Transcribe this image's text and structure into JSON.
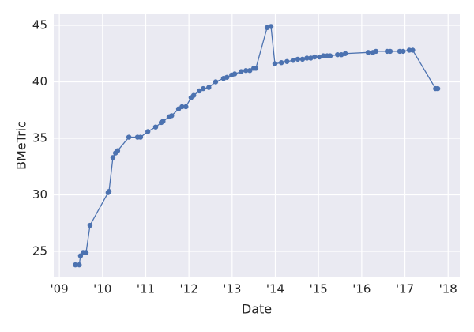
{
  "chart_data": {
    "type": "line",
    "xlabel": "Date",
    "ylabel": "BMeTric",
    "x": [
      2009.37,
      2009.46,
      2009.49,
      2009.55,
      2009.62,
      2009.71,
      2010.13,
      2010.15,
      2010.24,
      2010.3,
      2010.35,
      2010.61,
      2010.81,
      2010.88,
      2011.05,
      2011.23,
      2011.36,
      2011.4,
      2011.54,
      2011.6,
      2011.76,
      2011.84,
      2011.93,
      2012.05,
      2012.11,
      2012.24,
      2012.33,
      2012.46,
      2012.62,
      2012.8,
      2012.88,
      2012.99,
      2013.06,
      2013.21,
      2013.32,
      2013.41,
      2013.5,
      2013.55,
      2013.81,
      2013.9,
      2013.99,
      2014.14,
      2014.27,
      2014.41,
      2014.52,
      2014.63,
      2014.73,
      2014.82,
      2014.91,
      2015.02,
      2015.11,
      2015.2,
      2015.27,
      2015.44,
      2015.53,
      2015.62,
      2016.15,
      2016.26,
      2016.33,
      2016.59,
      2016.66,
      2016.88,
      2016.96,
      2017.1,
      2017.18,
      2017.71,
      2017.76
    ],
    "series": [
      {
        "color": "#4c72b0",
        "values": [
          23.8,
          23.8,
          24.6,
          24.9,
          24.9,
          27.3,
          30.2,
          30.3,
          33.3,
          33.7,
          33.9,
          35.1,
          35.1,
          35.1,
          35.6,
          36.0,
          36.4,
          36.5,
          36.9,
          37.0,
          37.6,
          37.8,
          37.8,
          38.6,
          38.8,
          39.2,
          39.4,
          39.5,
          40.0,
          40.3,
          40.4,
          40.6,
          40.7,
          40.9,
          41.0,
          41.0,
          41.2,
          41.2,
          44.8,
          44.9,
          41.6,
          41.7,
          41.8,
          41.9,
          42.0,
          42.0,
          42.1,
          42.1,
          42.2,
          42.2,
          42.3,
          42.3,
          42.3,
          42.4,
          42.4,
          42.5,
          42.6,
          42.6,
          42.7,
          42.7,
          42.7,
          42.7,
          42.7,
          42.8,
          42.8,
          39.4,
          39.4
        ]
      }
    ],
    "xlim": [
      2008.87,
      2018.27
    ],
    "xticks": [
      {
        "value": 2009,
        "label": "'09"
      },
      {
        "value": 2010,
        "label": "'10"
      },
      {
        "value": 2011,
        "label": "'11"
      },
      {
        "value": 2012,
        "label": "'12"
      },
      {
        "value": 2013,
        "label": "'13"
      },
      {
        "value": 2014,
        "label": "'14"
      },
      {
        "value": 2015,
        "label": "'15"
      },
      {
        "value": 2016,
        "label": "'16"
      },
      {
        "value": 2017,
        "label": "'17"
      },
      {
        "value": 2018,
        "label": "'18"
      }
    ],
    "ylim": [
      22.76,
      45.98
    ],
    "yticks": [
      25,
      30,
      35,
      40,
      45
    ],
    "grid": true,
    "background": "#eaeaf2"
  }
}
